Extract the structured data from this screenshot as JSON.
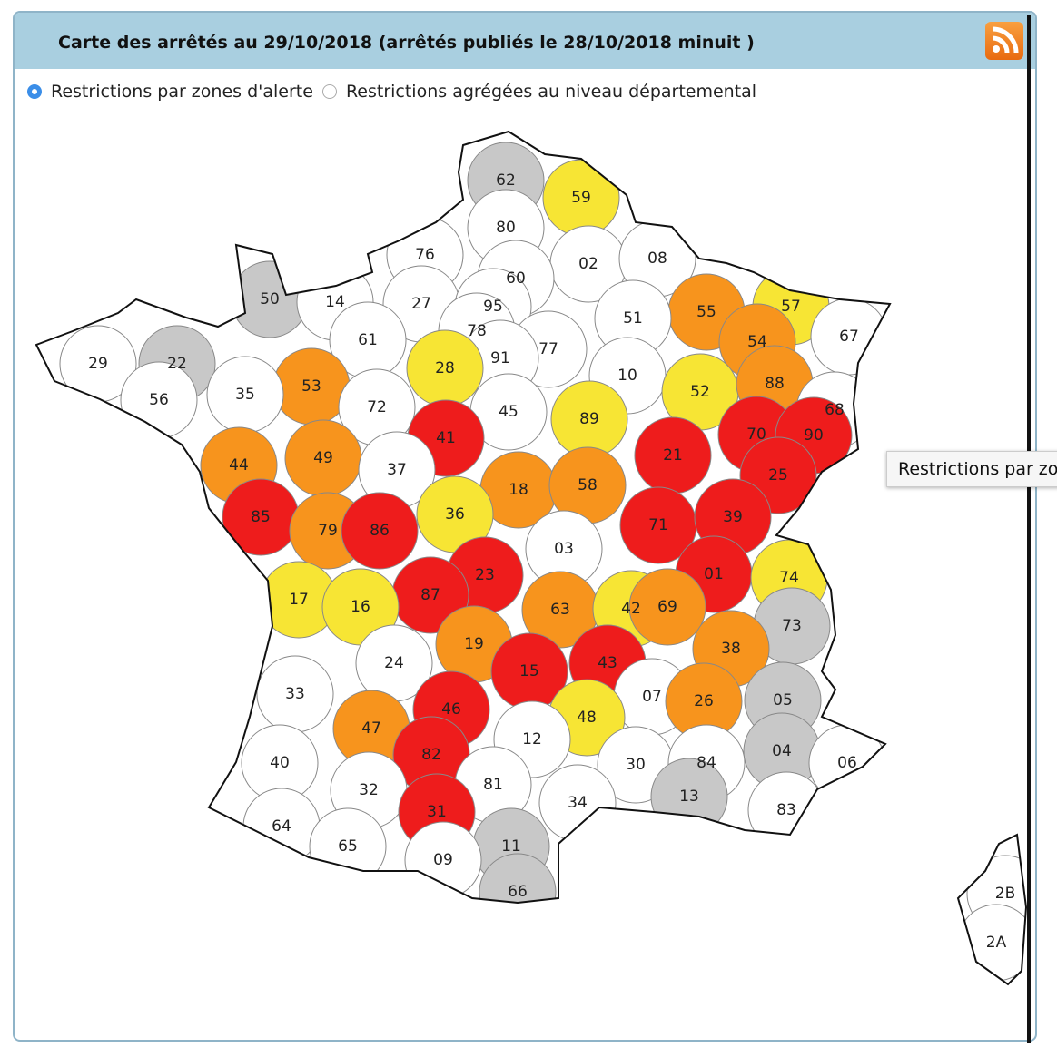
{
  "title": "Carte des arrêtés au 29/10/2018 (arrêtés publiés le 28/10/2018 minuit )",
  "options": [
    {
      "label": "Restrictions par zones d'alerte",
      "selected": true
    },
    {
      "label": "Restrictions agrégées au niveau départemental",
      "selected": false
    }
  ],
  "tooltip": "Restrictions par zones d'alerte",
  "departments": [
    {
      "label": "62",
      "color": "#c8c8c8"
    },
    {
      "label": "59",
      "color": "#f7e534"
    },
    {
      "label": "80",
      "color": "#ffffff"
    },
    {
      "label": "76",
      "color": "#ffffff"
    },
    {
      "label": "02",
      "color": "#ffffff"
    },
    {
      "label": "08",
      "color": "#ffffff"
    },
    {
      "label": "60",
      "color": "#ffffff"
    },
    {
      "label": "50",
      "color": "#c8c8c8"
    },
    {
      "label": "14",
      "color": "#ffffff"
    },
    {
      "label": "27",
      "color": "#ffffff"
    },
    {
      "label": "95",
      "color": "#ffffff"
    },
    {
      "label": "55",
      "color": "#f7941d"
    },
    {
      "label": "57",
      "color": "#f7e534"
    },
    {
      "label": "51",
      "color": "#ffffff"
    },
    {
      "label": "78",
      "color": "#ffffff"
    },
    {
      "label": "61",
      "color": "#ffffff"
    },
    {
      "label": "77",
      "color": "#ffffff"
    },
    {
      "label": "54",
      "color": "#f7941d"
    },
    {
      "label": "67",
      "color": "#ffffff"
    },
    {
      "label": "29",
      "color": "#ffffff"
    },
    {
      "label": "22",
      "color": "#c8c8c8"
    },
    {
      "label": "91",
      "color": "#ffffff"
    },
    {
      "label": "28",
      "color": "#f7e534"
    },
    {
      "label": "10",
      "color": "#ffffff"
    },
    {
      "label": "53",
      "color": "#f7941d"
    },
    {
      "label": "72",
      "color": "#ffffff"
    },
    {
      "label": "35",
      "color": "#ffffff"
    },
    {
      "label": "56",
      "color": "#ffffff"
    },
    {
      "label": "52",
      "color": "#f7e534"
    },
    {
      "label": "88",
      "color": "#f7941d"
    },
    {
      "label": "89",
      "color": "#f7e534"
    },
    {
      "label": "45",
      "color": "#ffffff"
    },
    {
      "label": "68",
      "color": "#ffffff"
    },
    {
      "label": "41",
      "color": "#ee1c1c"
    },
    {
      "label": "70",
      "color": "#ee1c1c"
    },
    {
      "label": "90",
      "color": "#ee1c1c"
    },
    {
      "label": "21",
      "color": "#ee1c1c"
    },
    {
      "label": "44",
      "color": "#f7941d"
    },
    {
      "label": "49",
      "color": "#f7941d"
    },
    {
      "label": "37",
      "color": "#ffffff"
    },
    {
      "label": "25",
      "color": "#ee1c1c"
    },
    {
      "label": "18",
      "color": "#f7941d"
    },
    {
      "label": "58",
      "color": "#f7941d"
    },
    {
      "label": "85",
      "color": "#ee1c1c"
    },
    {
      "label": "79",
      "color": "#f7941d"
    },
    {
      "label": "86",
      "color": "#ee1c1c"
    },
    {
      "label": "36",
      "color": "#f7e534"
    },
    {
      "label": "71",
      "color": "#ee1c1c"
    },
    {
      "label": "39",
      "color": "#ee1c1c"
    },
    {
      "label": "03",
      "color": "#ffffff"
    },
    {
      "label": "01",
      "color": "#ee1c1c"
    },
    {
      "label": "74",
      "color": "#f7e534"
    },
    {
      "label": "23",
      "color": "#ee1c1c"
    },
    {
      "label": "87",
      "color": "#ee1c1c"
    },
    {
      "label": "17",
      "color": "#f7e534"
    },
    {
      "label": "16",
      "color": "#f7e534"
    },
    {
      "label": "63",
      "color": "#f7941d"
    },
    {
      "label": "42",
      "color": "#f7e534"
    },
    {
      "label": "69",
      "color": "#f7941d"
    },
    {
      "label": "73",
      "color": "#c8c8c8"
    },
    {
      "label": "19",
      "color": "#f7941d"
    },
    {
      "label": "38",
      "color": "#f7941d"
    },
    {
      "label": "24",
      "color": "#ffffff"
    },
    {
      "label": "15",
      "color": "#ee1c1c"
    },
    {
      "label": "43",
      "color": "#ee1c1c"
    },
    {
      "label": "33",
      "color": "#ffffff"
    },
    {
      "label": "07",
      "color": "#ffffff"
    },
    {
      "label": "26",
      "color": "#f7941d"
    },
    {
      "label": "05",
      "color": "#c8c8c8"
    },
    {
      "label": "48",
      "color": "#f7e534"
    },
    {
      "label": "46",
      "color": "#ee1c1c"
    },
    {
      "label": "47",
      "color": "#f7941d"
    },
    {
      "label": "12",
      "color": "#ffffff"
    },
    {
      "label": "04",
      "color": "#c8c8c8"
    },
    {
      "label": "06",
      "color": "#ffffff"
    },
    {
      "label": "40",
      "color": "#ffffff"
    },
    {
      "label": "82",
      "color": "#ee1c1c"
    },
    {
      "label": "30",
      "color": "#ffffff"
    },
    {
      "label": "84",
      "color": "#ffffff"
    },
    {
      "label": "32",
      "color": "#ffffff"
    },
    {
      "label": "81",
      "color": "#ffffff"
    },
    {
      "label": "13",
      "color": "#c8c8c8"
    },
    {
      "label": "34",
      "color": "#ffffff"
    },
    {
      "label": "83",
      "color": "#ffffff"
    },
    {
      "label": "64",
      "color": "#ffffff"
    },
    {
      "label": "31",
      "color": "#ee1c1c"
    },
    {
      "label": "65",
      "color": "#ffffff"
    },
    {
      "label": "11",
      "color": "#c8c8c8"
    },
    {
      "label": "09",
      "color": "#ffffff"
    },
    {
      "label": "66",
      "color": "#c8c8c8"
    },
    {
      "label": "2B",
      "color": "#ffffff"
    },
    {
      "label": "2A",
      "color": "#ffffff"
    }
  ]
}
